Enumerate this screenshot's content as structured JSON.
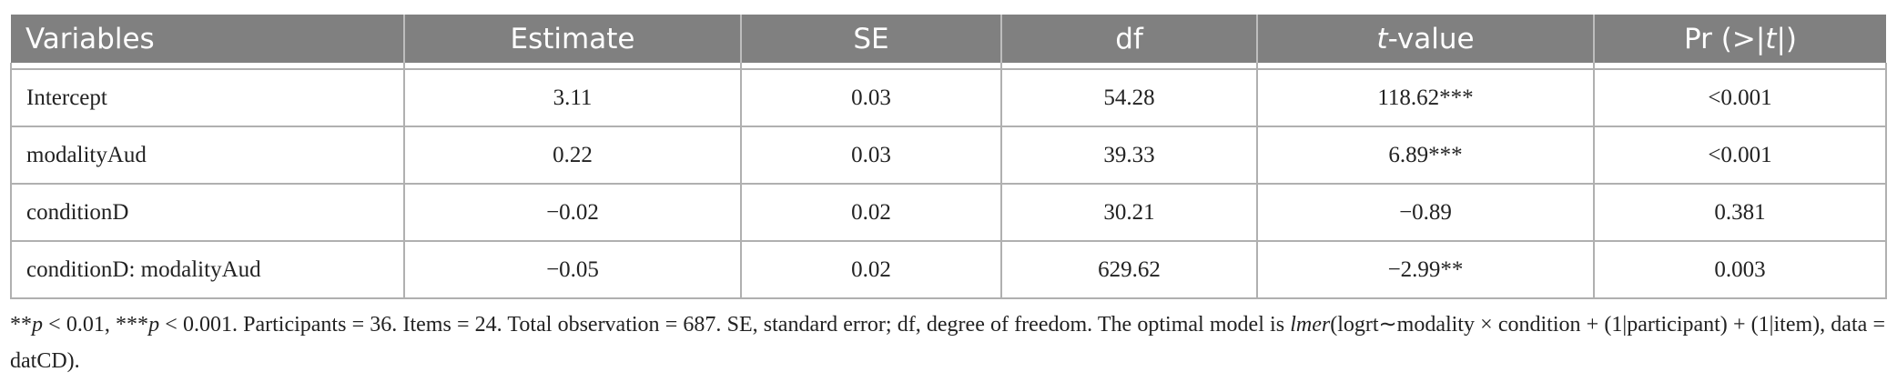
{
  "table": {
    "header": [
      [
        {
          "text": "Variables"
        }
      ],
      [
        {
          "text": "Estimate"
        }
      ],
      [
        {
          "text": "SE"
        }
      ],
      [
        {
          "text": "df"
        }
      ],
      [
        {
          "text": "t",
          "italic": true
        },
        {
          "text": "-value"
        }
      ],
      [
        {
          "text": "Pr (>|"
        },
        {
          "text": "t",
          "italic": true
        },
        {
          "text": "|)"
        }
      ]
    ],
    "rows": [
      [
        "Intercept",
        "3.11",
        "0.03",
        "54.28",
        "118.62***",
        "<0.001"
      ],
      [
        "modalityAud",
        "0.22",
        "0.03",
        "39.33",
        "6.89***",
        "<0.001"
      ],
      [
        "conditionD",
        "−0.02",
        "0.02",
        "30.21",
        "−0.89",
        "0.381"
      ],
      [
        "conditionD: modalityAud",
        "−0.05",
        "0.02",
        "629.62",
        "−2.99**",
        "0.003"
      ]
    ]
  },
  "footnote": [
    {
      "text": "**"
    },
    {
      "text": "p",
      "italic": true
    },
    {
      "text": " < 0.01, ***"
    },
    {
      "text": "p",
      "italic": true
    },
    {
      "text": " < 0.001. Participants = 36. Items = 24. Total observation = 687. SE, standard error; df, degree of freedom. The optimal model is "
    },
    {
      "text": "lmer",
      "italic": true
    },
    {
      "text": "(logrt∼modality × condition + (1|participant) + (1|item), data = datCD)."
    }
  ]
}
